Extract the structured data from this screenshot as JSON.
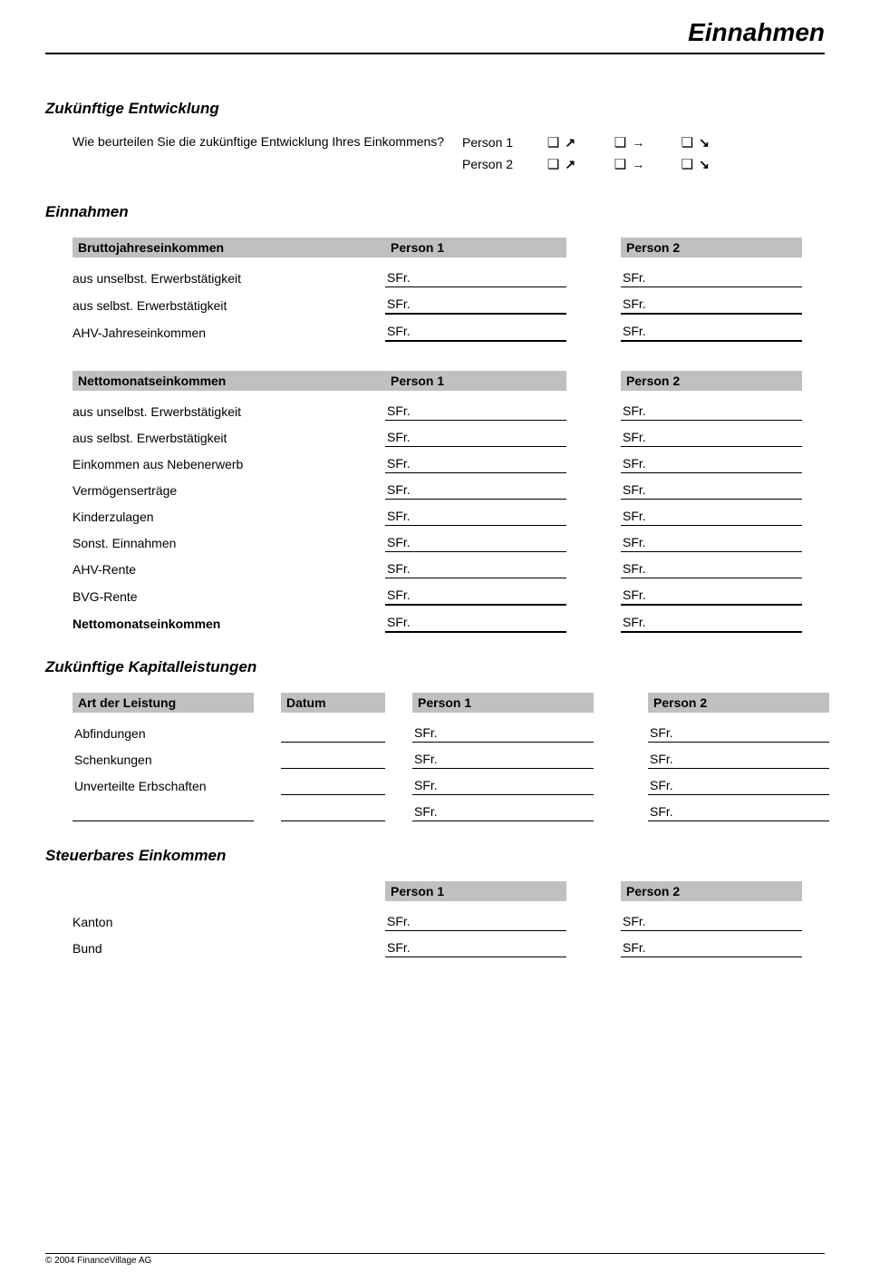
{
  "page_title": "Einnahmen",
  "currency_prefix": "SFr.",
  "checkbox_glyph": "❑",
  "arrows": {
    "up": "↗",
    "right": "→",
    "down": "↘"
  },
  "zukuenftige_entwicklung": {
    "heading": "Zukünftige Entwicklung",
    "question": "Wie beurteilen Sie die zukünftige Entwicklung Ihres Einkommens?",
    "person1_label": "Person 1",
    "person2_label": "Person 2"
  },
  "einnahmen": {
    "heading": "Einnahmen",
    "brutto": {
      "header": "Bruttojahreseinkommen",
      "col1": "Person 1",
      "col2": "Person 2",
      "rows": [
        {
          "label": "aus unselbst. Erwerbstätigkeit",
          "bold": false,
          "thick": false
        },
        {
          "label": "aus selbst. Erwerbstätigkeit",
          "bold": false,
          "thick": true
        },
        {
          "label": "AHV-Jahreseinkommen",
          "bold": false,
          "thick": true
        }
      ]
    },
    "netto": {
      "header": "Nettomonatseinkommen",
      "col1": "Person 1",
      "col2": "Person 2",
      "rows": [
        {
          "label": "aus unselbst. Erwerbstätigkeit",
          "bold": false,
          "thick": false
        },
        {
          "label": "aus selbst. Erwerbstätigkeit",
          "bold": false,
          "thick": false
        },
        {
          "label": "Einkommen aus Nebenerwerb",
          "bold": false,
          "thick": false
        },
        {
          "label": "Vermögenserträge",
          "bold": false,
          "thick": false
        },
        {
          "label": "Kinderzulagen",
          "bold": false,
          "thick": false
        },
        {
          "label": "Sonst. Einnahmen",
          "bold": false,
          "thick": false
        },
        {
          "label": "AHV-Rente",
          "bold": false,
          "thick": false
        },
        {
          "label": "BVG-Rente",
          "bold": false,
          "thick": true
        },
        {
          "label": "Nettomonatseinkommen",
          "bold": true,
          "thick": true
        }
      ]
    }
  },
  "kapitalleistungen": {
    "heading": "Zukünftige Kapitalleistungen",
    "col_art": "Art der Leistung",
    "col_datum": "Datum",
    "col_p1": "Person 1",
    "col_p2": "Person 2",
    "rows": [
      {
        "label": "Abfindungen"
      },
      {
        "label": "Schenkungen"
      },
      {
        "label": "Unverteilte Erbschaften"
      },
      {
        "label": ""
      }
    ]
  },
  "steuerbares": {
    "heading": "Steuerbares Einkommen",
    "col1": "Person 1",
    "col2": "Person 2",
    "rows": [
      {
        "label": "Kanton"
      },
      {
        "label": "Bund"
      }
    ]
  },
  "footer": "© 2004 FinanceVillage AG"
}
